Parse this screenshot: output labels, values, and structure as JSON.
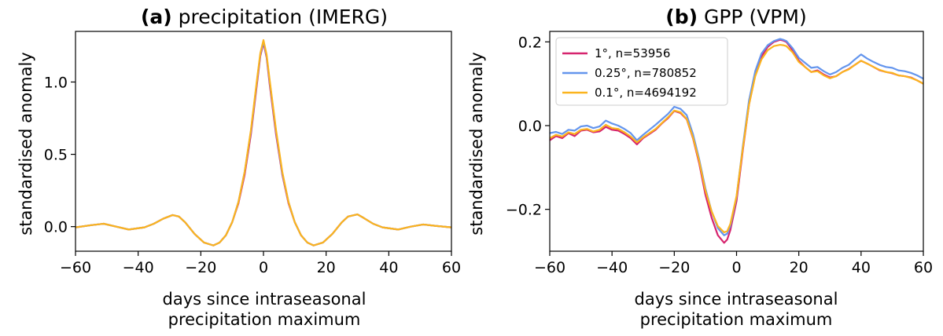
{
  "chart_data": [
    {
      "type": "line",
      "title_bold": "(a)",
      "title_rest": "precipitation (IMERG)",
      "xlabel_line1": "days since intraseasonal",
      "xlabel_line2": "precipitation maximum",
      "ylabel": "standardised anomaly",
      "xlim": [
        -60,
        60
      ],
      "ylim": [
        -0.17,
        1.35
      ],
      "xticks": [
        -60,
        -40,
        -20,
        0,
        20,
        40,
        60
      ],
      "xtick_labels": [
        "−60",
        "−40",
        "−20",
        "0",
        "20",
        "40",
        "60"
      ],
      "yticks": [
        0.0,
        0.5,
        1.0
      ],
      "ytick_labels": [
        "0.0",
        "0.5",
        "1.0"
      ],
      "legend": false,
      "grid": false,
      "series": [
        {
          "color": "#d6246e",
          "x": [
            -60,
            -55,
            -51,
            -47,
            -43,
            -38,
            -35,
            -32,
            -29,
            -27,
            -25,
            -22,
            -19,
            -16,
            -14,
            -12,
            -10,
            -8,
            -6,
            -4,
            -2,
            -1,
            0,
            1,
            2,
            4,
            6,
            8,
            10,
            12,
            14,
            16,
            19,
            22,
            25,
            27,
            30,
            32,
            35,
            38,
            43,
            47,
            51,
            55,
            60
          ],
          "y": [
            -0.005,
            0.01,
            0.02,
            0.0,
            -0.02,
            -0.005,
            0.02,
            0.055,
            0.08,
            0.07,
            0.03,
            -0.05,
            -0.11,
            -0.13,
            -0.11,
            -0.06,
            0.03,
            0.16,
            0.36,
            0.64,
            1.0,
            1.18,
            1.27,
            1.17,
            0.98,
            0.64,
            0.36,
            0.16,
            0.03,
            -0.06,
            -0.11,
            -0.13,
            -0.11,
            -0.05,
            0.03,
            0.07,
            0.085,
            0.06,
            0.02,
            -0.005,
            -0.02,
            0.0,
            0.015,
            0.005,
            -0.005
          ]
        },
        {
          "color": "#6495ed",
          "x": [
            -60,
            -55,
            -51,
            -47,
            -43,
            -38,
            -35,
            -32,
            -29,
            -27,
            -25,
            -22,
            -19,
            -16,
            -14,
            -12,
            -10,
            -8,
            -6,
            -4,
            -2,
            -1,
            0,
            1,
            2,
            4,
            6,
            8,
            10,
            12,
            14,
            16,
            19,
            22,
            25,
            27,
            30,
            32,
            35,
            38,
            43,
            47,
            51,
            55,
            60
          ],
          "y": [
            -0.005,
            0.01,
            0.02,
            0.0,
            -0.02,
            -0.005,
            0.02,
            0.055,
            0.08,
            0.07,
            0.03,
            -0.05,
            -0.11,
            -0.13,
            -0.11,
            -0.06,
            0.03,
            0.17,
            0.38,
            0.66,
            1.02,
            1.19,
            1.28,
            1.18,
            1.0,
            0.66,
            0.37,
            0.17,
            0.03,
            -0.06,
            -0.11,
            -0.13,
            -0.11,
            -0.05,
            0.03,
            0.07,
            0.085,
            0.06,
            0.02,
            -0.005,
            -0.02,
            0.0,
            0.015,
            0.005,
            -0.005
          ]
        },
        {
          "color": "#fbb41e",
          "x": [
            -60,
            -55,
            -51,
            -47,
            -43,
            -38,
            -35,
            -32,
            -29,
            -27,
            -25,
            -22,
            -19,
            -16,
            -14,
            -12,
            -10,
            -8,
            -6,
            -4,
            -2,
            -1,
            0,
            1,
            2,
            4,
            6,
            8,
            10,
            12,
            14,
            16,
            19,
            22,
            25,
            27,
            30,
            32,
            35,
            38,
            43,
            47,
            51,
            55,
            60
          ],
          "y": [
            -0.005,
            0.01,
            0.02,
            0.0,
            -0.02,
            -0.005,
            0.02,
            0.055,
            0.08,
            0.07,
            0.03,
            -0.05,
            -0.11,
            -0.13,
            -0.11,
            -0.06,
            0.03,
            0.17,
            0.38,
            0.67,
            1.03,
            1.2,
            1.29,
            1.19,
            1.01,
            0.67,
            0.38,
            0.17,
            0.03,
            -0.06,
            -0.11,
            -0.13,
            -0.11,
            -0.05,
            0.03,
            0.07,
            0.085,
            0.06,
            0.02,
            -0.005,
            -0.02,
            0.0,
            0.015,
            0.005,
            -0.005
          ]
        }
      ]
    },
    {
      "type": "line",
      "title_bold": "(b)",
      "title_rest": "GPP (VPM)",
      "xlabel_line1": "days since intraseasonal",
      "xlabel_line2": "precipitation maximum",
      "ylabel": "standardised anomaly",
      "xlim": [
        -60,
        60
      ],
      "ylim": [
        -0.3,
        0.225
      ],
      "xticks": [
        -60,
        -40,
        -20,
        0,
        20,
        40,
        60
      ],
      "xtick_labels": [
        "−60",
        "−40",
        "−20",
        "0",
        "20",
        "40",
        "60"
      ],
      "yticks": [
        -0.2,
        0.0,
        0.2
      ],
      "ytick_labels": [
        "−0.2",
        "0.0",
        "0.2"
      ],
      "legend": true,
      "legend_loc": "upper left",
      "grid": false,
      "series": [
        {
          "name": "1°, n=53956",
          "color": "#d6246e",
          "x": [
            -60,
            -58,
            -56,
            -54,
            -52,
            -50,
            -48,
            -46,
            -44,
            -42,
            -40,
            -38,
            -36,
            -34,
            -32,
            -30,
            -28,
            -26,
            -24,
            -22,
            -20,
            -18,
            -16,
            -14,
            -12,
            -10,
            -8,
            -6,
            -4,
            -3,
            -2,
            0,
            2,
            4,
            6,
            8,
            10,
            12,
            14,
            15,
            16,
            18,
            20,
            22,
            24,
            26,
            28,
            30,
            32,
            34,
            36,
            38,
            40,
            42,
            44,
            46,
            48,
            50,
            52,
            54,
            56,
            58,
            60
          ],
          "y": [
            -0.035,
            -0.025,
            -0.03,
            -0.018,
            -0.025,
            -0.012,
            -0.01,
            -0.016,
            -0.014,
            -0.003,
            -0.01,
            -0.012,
            -0.02,
            -0.03,
            -0.045,
            -0.03,
            -0.02,
            -0.01,
            0.005,
            0.018,
            0.035,
            0.03,
            0.015,
            -0.03,
            -0.09,
            -0.165,
            -0.22,
            -0.262,
            -0.28,
            -0.272,
            -0.25,
            -0.18,
            -0.06,
            0.05,
            0.12,
            0.165,
            0.188,
            0.2,
            0.205,
            0.203,
            0.2,
            0.18,
            0.155,
            0.14,
            0.128,
            0.132,
            0.122,
            0.115,
            0.118,
            0.128,
            0.135,
            0.145,
            0.155,
            0.148,
            0.14,
            0.132,
            0.128,
            0.125,
            0.12,
            0.118,
            0.115,
            0.108,
            0.1
          ]
        },
        {
          "name": "0.25°, n=780852",
          "color": "#6495ed",
          "x": [
            -60,
            -58,
            -56,
            -54,
            -52,
            -50,
            -48,
            -46,
            -44,
            -42,
            -40,
            -38,
            -36,
            -34,
            -32,
            -30,
            -28,
            -26,
            -24,
            -22,
            -20,
            -18,
            -16,
            -14,
            -12,
            -10,
            -8,
            -6,
            -4,
            -3,
            -2,
            0,
            2,
            4,
            6,
            8,
            10,
            12,
            14,
            15,
            16,
            18,
            20,
            22,
            24,
            26,
            28,
            30,
            32,
            34,
            36,
            38,
            40,
            42,
            44,
            46,
            48,
            50,
            52,
            54,
            56,
            58,
            60
          ],
          "y": [
            -0.018,
            -0.015,
            -0.02,
            -0.01,
            -0.012,
            -0.002,
            0.0,
            -0.006,
            -0.002,
            0.012,
            0.005,
            0.0,
            -0.008,
            -0.018,
            -0.035,
            -0.022,
            -0.01,
            0.002,
            0.015,
            0.028,
            0.045,
            0.04,
            0.025,
            -0.02,
            -0.08,
            -0.15,
            -0.205,
            -0.245,
            -0.262,
            -0.258,
            -0.24,
            -0.17,
            -0.05,
            0.06,
            0.13,
            0.172,
            0.192,
            0.202,
            0.207,
            0.205,
            0.202,
            0.185,
            0.162,
            0.15,
            0.138,
            0.14,
            0.13,
            0.122,
            0.128,
            0.138,
            0.145,
            0.158,
            0.17,
            0.16,
            0.152,
            0.145,
            0.14,
            0.138,
            0.132,
            0.13,
            0.126,
            0.12,
            0.112
          ]
        },
        {
          "name": "0.1°, n=4694192",
          "color": "#fbb41e",
          "x": [
            -60,
            -58,
            -56,
            -54,
            -52,
            -50,
            -48,
            -46,
            -44,
            -42,
            -40,
            -38,
            -36,
            -34,
            -32,
            -30,
            -28,
            -26,
            -24,
            -22,
            -20,
            -18,
            -16,
            -14,
            -12,
            -10,
            -8,
            -6,
            -4,
            -3,
            -2,
            0,
            2,
            4,
            6,
            8,
            10,
            12,
            14,
            15,
            16,
            18,
            20,
            22,
            24,
            26,
            28,
            30,
            32,
            34,
            36,
            38,
            40,
            42,
            44,
            46,
            48,
            50,
            52,
            54,
            56,
            58,
            60
          ],
          "y": [
            -0.03,
            -0.022,
            -0.026,
            -0.016,
            -0.02,
            -0.01,
            -0.008,
            -0.014,
            -0.01,
            0.002,
            -0.006,
            -0.008,
            -0.016,
            -0.026,
            -0.04,
            -0.028,
            -0.018,
            -0.008,
            0.006,
            0.02,
            0.036,
            0.032,
            0.016,
            -0.028,
            -0.085,
            -0.155,
            -0.205,
            -0.24,
            -0.255,
            -0.252,
            -0.235,
            -0.168,
            -0.055,
            0.05,
            0.118,
            0.158,
            0.18,
            0.19,
            0.193,
            0.192,
            0.19,
            0.175,
            0.152,
            0.14,
            0.128,
            0.13,
            0.12,
            0.113,
            0.118,
            0.128,
            0.134,
            0.145,
            0.155,
            0.148,
            0.14,
            0.133,
            0.128,
            0.126,
            0.12,
            0.118,
            0.114,
            0.108,
            0.1
          ]
        }
      ]
    }
  ]
}
